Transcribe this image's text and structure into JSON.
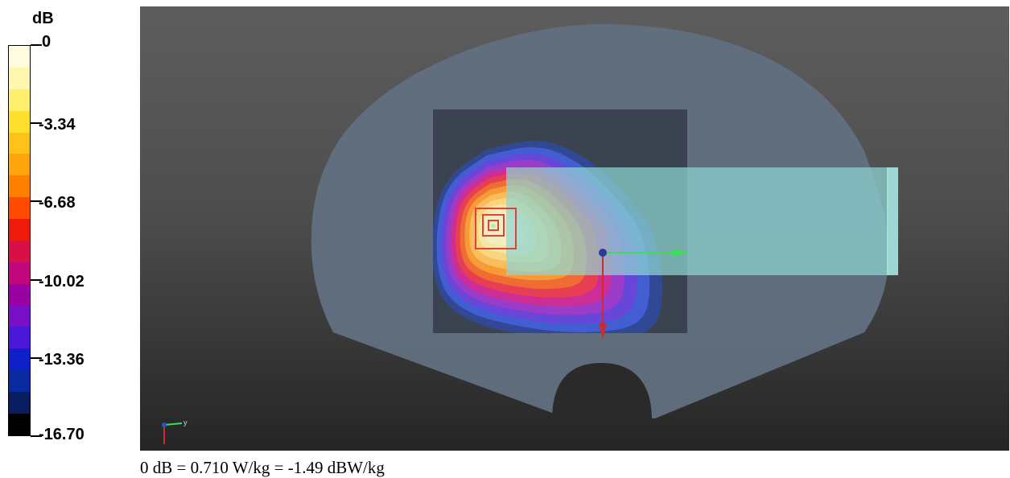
{
  "chart_data": {
    "type": "heatmap",
    "title": "",
    "colorbar": {
      "unit": "dB",
      "range": [
        -16.7,
        0
      ],
      "tick_labels": [
        "0",
        "-3.34",
        "-6.68",
        "-10.02",
        "-13.36",
        "-16.70"
      ],
      "tick_values": [
        0,
        -3.34,
        -6.68,
        -10.02,
        -13.36,
        -16.7
      ],
      "steps": [
        "#fffbe0",
        "#fff7b0",
        "#ffef6e",
        "#ffe02e",
        "#ffc21a",
        "#ffa50c",
        "#ff8000",
        "#ff4a00",
        "#ee1a0c",
        "#d81048",
        "#c0087c",
        "#9a00a4",
        "#7810c8",
        "#4a18d8",
        "#1020c8",
        "#0a2aa0",
        "#081e60",
        "#000000"
      ]
    },
    "scene": {
      "body_fill": "#617080",
      "scan_area_fill": "#3b4350",
      "device_fill": "#8fd6d3",
      "axis_x_color": "#3edc5a",
      "axis_y_color": "#d02a2a",
      "peak_marker_color": "#e04040",
      "hotspot_contours": [
        "#2f4aa6",
        "#4460d8",
        "#6a44d8",
        "#a03cc8",
        "#d02e90",
        "#e8404c",
        "#f07030",
        "#f6a038",
        "#f8c060",
        "#f8d880",
        "#f4e8a8",
        "#eef0c4"
      ]
    },
    "footer_text": "0 dB = 0.710 W/kg = -1.49 dBW/kg"
  }
}
